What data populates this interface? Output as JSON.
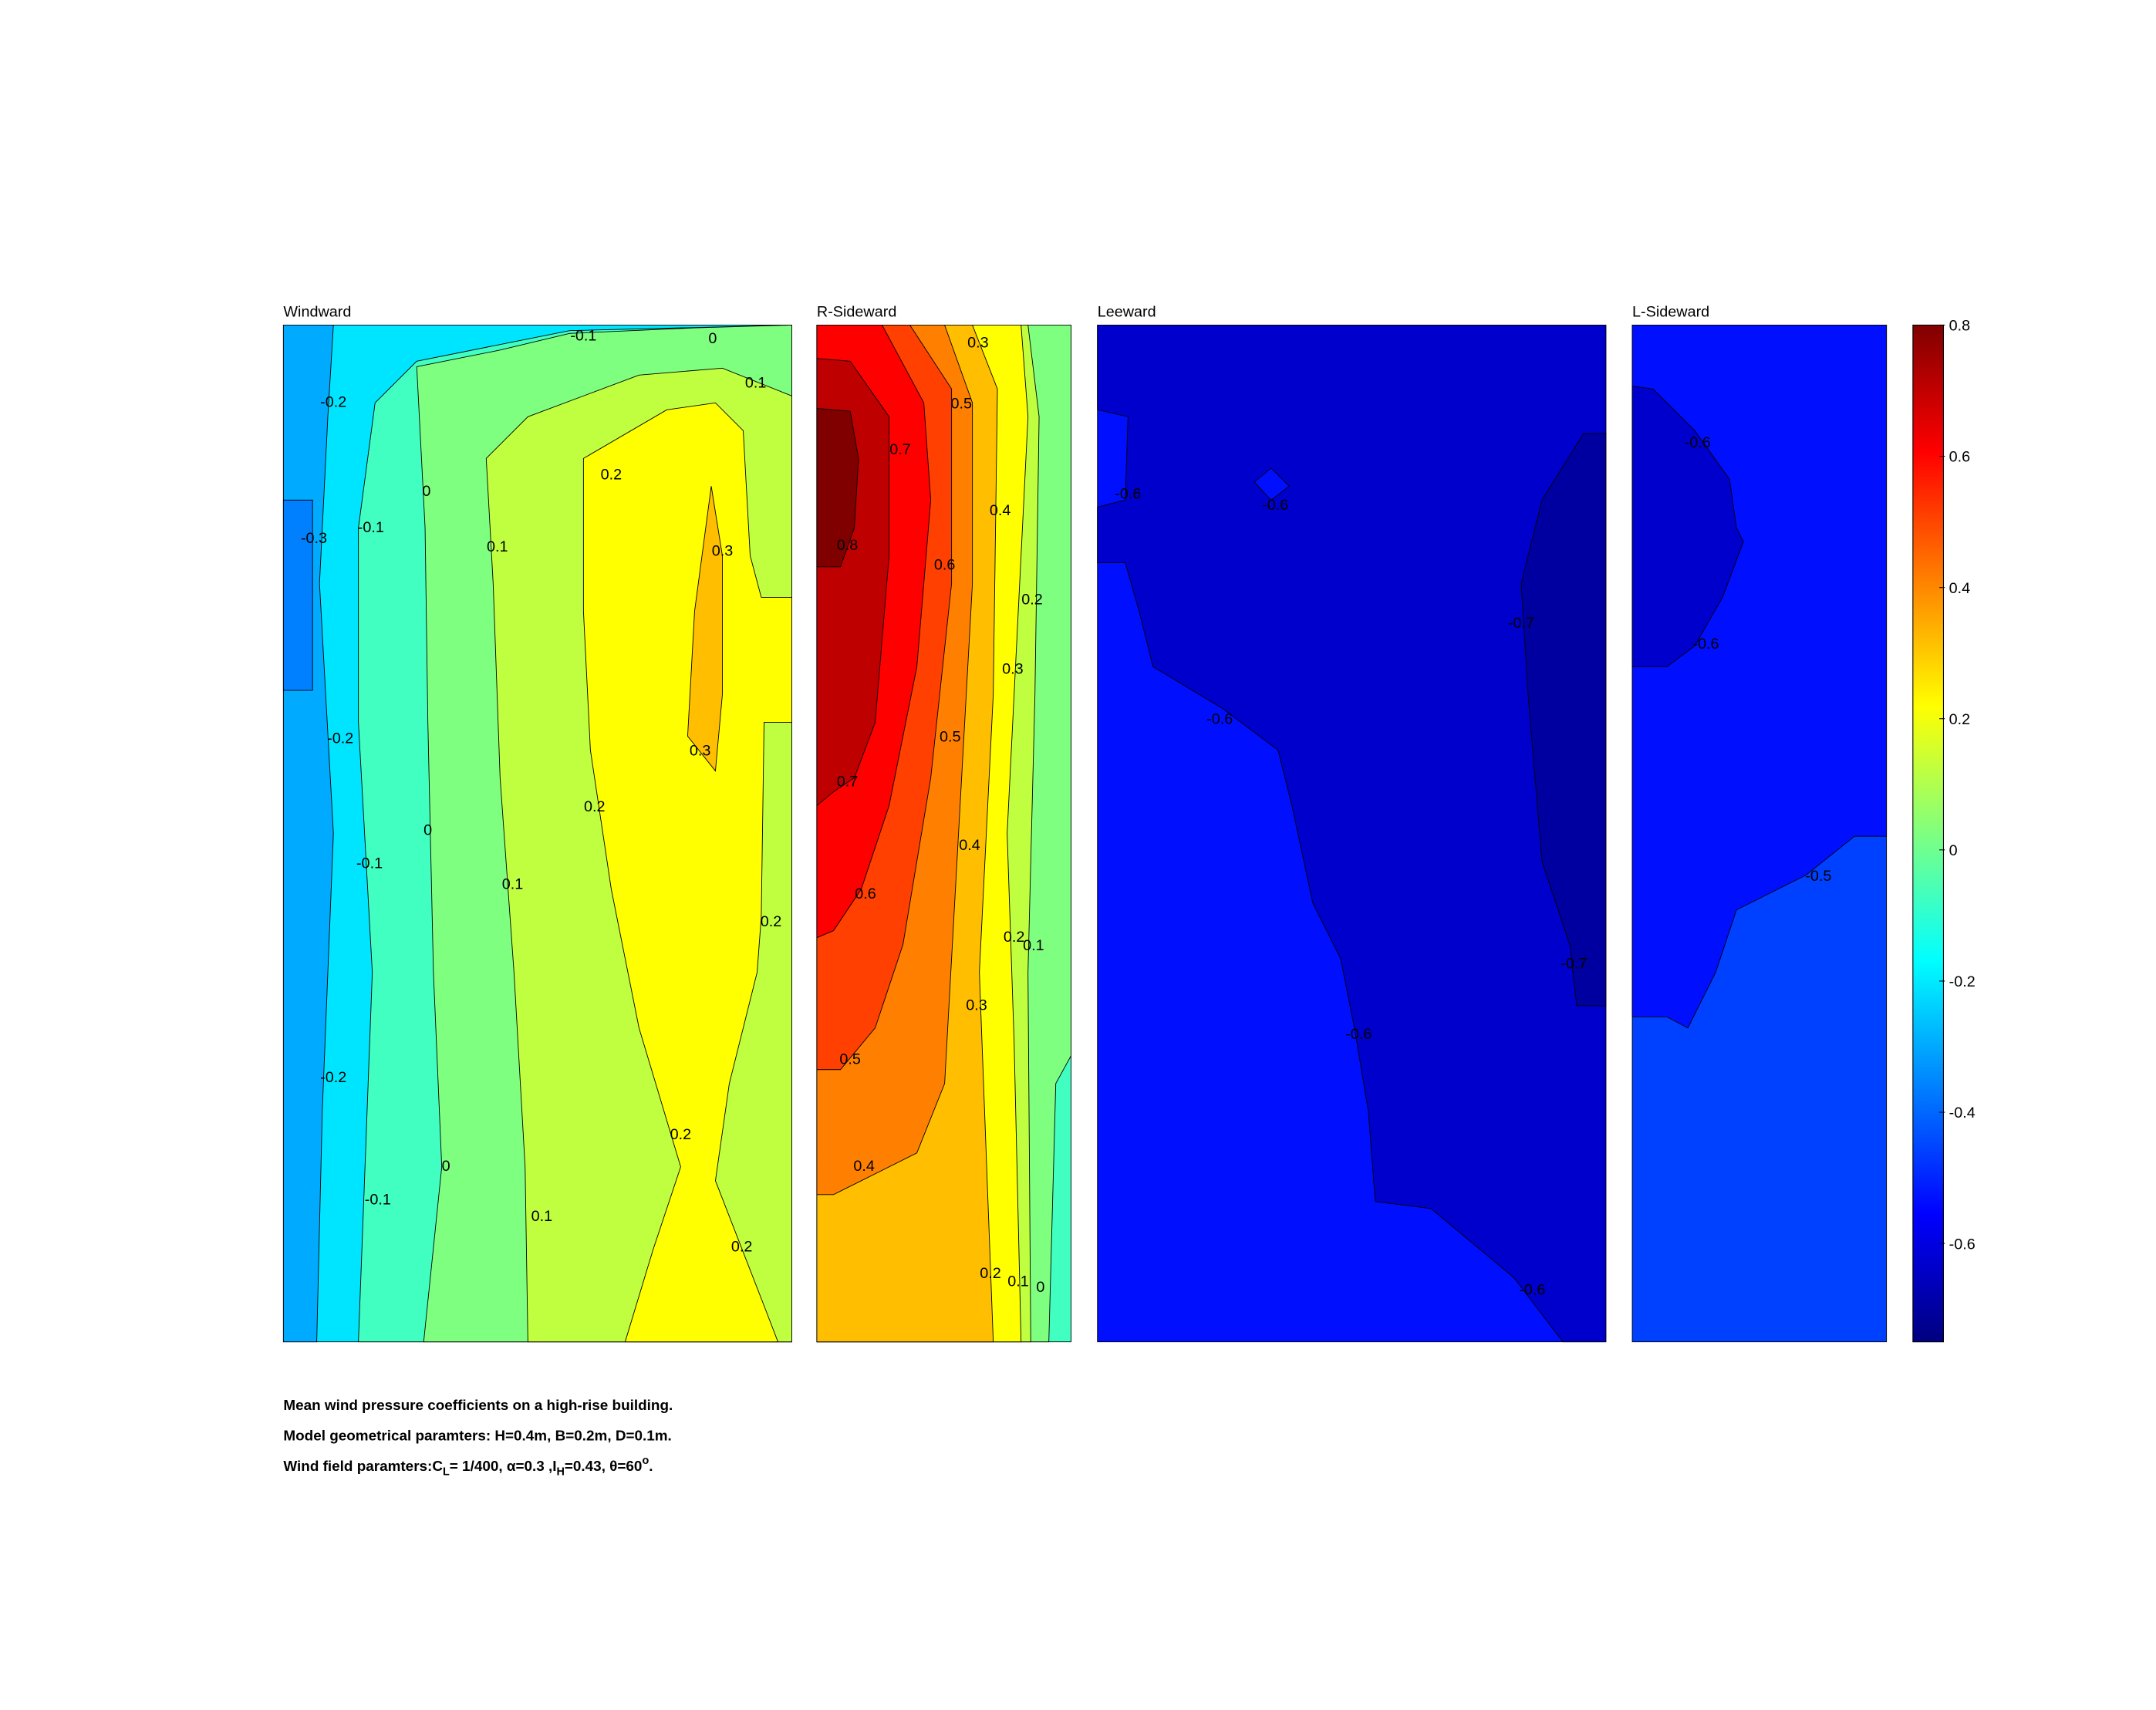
{
  "chart_data": {
    "type": "contour",
    "panels": [
      {
        "title": "Windward",
        "levels": [
          -0.1,
          0,
          0.1,
          -0.2,
          0,
          0.2,
          -0.3,
          -0.1,
          0.1,
          0.3,
          -0.2,
          0.3,
          0.2,
          0,
          -0.1,
          0.1,
          0.2,
          -0.2,
          0.2,
          0,
          -0.1,
          0.1,
          0.2
        ]
      },
      {
        "title": "R-Sideward",
        "levels": [
          0.3,
          0.5,
          0.7,
          0.8,
          0.4,
          0.6,
          0.2,
          0.3,
          0.5,
          0.7,
          0.4,
          0.6,
          0.2,
          0.1,
          0.3,
          0.5,
          0.4,
          0.2,
          0.1,
          0
        ]
      },
      {
        "title": "Leeward",
        "levels": [
          -0.6,
          -0.6,
          -0.7,
          -0.6,
          -0.7,
          -0.6,
          -0.6
        ]
      },
      {
        "title": "L-Sideward",
        "levels": [
          -0.6,
          -0.6,
          -0.5
        ]
      }
    ],
    "colorbar": {
      "clim": [
        -0.75,
        0.8
      ],
      "ticks": [
        0.8,
        0.6,
        0.4,
        0.2,
        0,
        -0.2,
        -0.4,
        -0.6
      ]
    }
  },
  "caption": {
    "lines": [
      "Mean wind pressure coefficients on a high-rise building.",
      "Model geometrical paramters: H=0.4m, B=0.2m, D=0.1m."
    ],
    "parts": [
      "Wind field paramters:C",
      "L",
      "= 1/400, α=0.3 ,I",
      "H",
      "=0.43, θ=60",
      "o",
      "."
    ]
  }
}
